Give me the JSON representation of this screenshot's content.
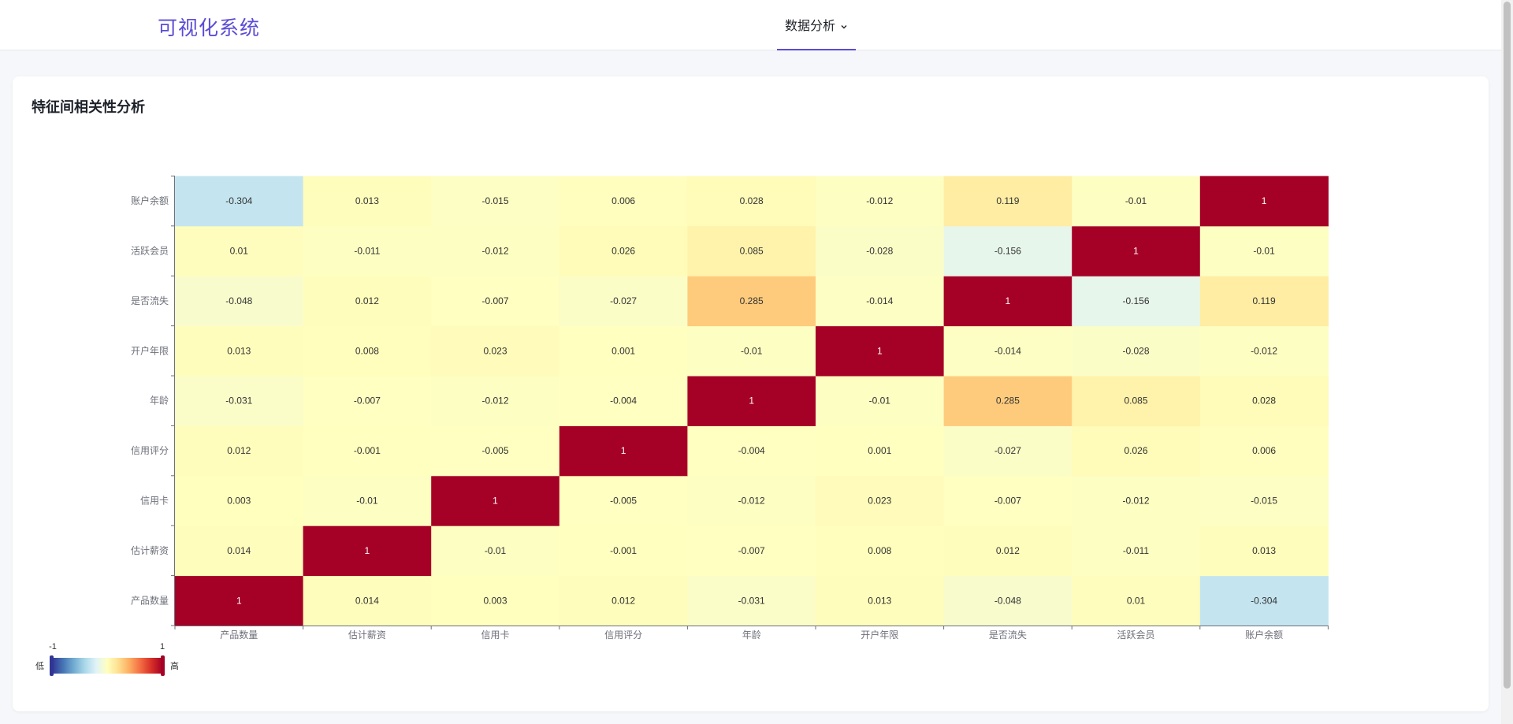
{
  "header": {
    "brand": "可视化系统",
    "nav": {
      "label": "数据分析"
    }
  },
  "icons": {
    "dropdown": "chevron-down-icon"
  },
  "page": {
    "title": "特征间相关性分析"
  },
  "chart_data": {
    "type": "heatmap",
    "x_categories": [
      "产品数量",
      "估计薪资",
      "信用卡",
      "信用评分",
      "年龄",
      "开户年限",
      "是否流失",
      "活跃会员",
      "账户余额"
    ],
    "y_categories": [
      "产品数量",
      "估计薪资",
      "信用卡",
      "信用评分",
      "年龄",
      "开户年限",
      "是否流失",
      "活跃会员",
      "账户余额"
    ],
    "values": [
      [
        1,
        0.014,
        0.003,
        0.012,
        -0.031,
        0.013,
        -0.048,
        0.01,
        -0.304
      ],
      [
        0.014,
        1,
        -0.01,
        -0.001,
        -0.007,
        0.008,
        0.012,
        -0.011,
        0.013
      ],
      [
        0.003,
        -0.01,
        1,
        -0.005,
        -0.012,
        0.023,
        -0.007,
        -0.012,
        -0.015
      ],
      [
        0.012,
        -0.001,
        -0.005,
        1,
        -0.004,
        0.001,
        -0.027,
        0.026,
        0.006
      ],
      [
        -0.031,
        -0.007,
        -0.012,
        -0.004,
        1,
        -0.01,
        0.285,
        0.085,
        0.028
      ],
      [
        0.013,
        0.008,
        0.023,
        0.001,
        -0.01,
        1,
        -0.014,
        -0.028,
        -0.012
      ],
      [
        -0.048,
        0.012,
        -0.007,
        -0.027,
        0.285,
        -0.014,
        1,
        -0.156,
        0.119
      ],
      [
        0.01,
        -0.011,
        -0.012,
        0.026,
        0.085,
        -0.028,
        -0.156,
        1,
        -0.01
      ],
      [
        -0.304,
        0.013,
        -0.015,
        0.006,
        0.028,
        -0.012,
        0.119,
        -0.01,
        1
      ]
    ],
    "visual_map": {
      "min": -1,
      "max": 1,
      "min_label": "-1",
      "max_label": "1",
      "low_text": "低",
      "high_text": "高",
      "colors": [
        "#313695",
        "#4575b4",
        "#74add1",
        "#abd9e9",
        "#e0f3f8",
        "#ffffbf",
        "#fee090",
        "#fdae61",
        "#f46d43",
        "#d73027",
        "#a50026"
      ]
    },
    "grid": false,
    "legend": "bottom-left"
  }
}
